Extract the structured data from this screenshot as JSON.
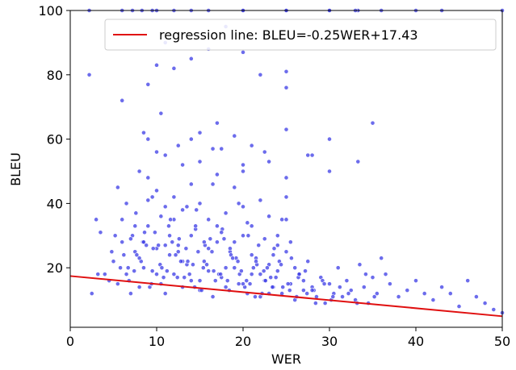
{
  "chart_data": {
    "type": "scatter",
    "xlabel": "WER",
    "ylabel": "BLEU",
    "xlim": [
      0,
      50
    ],
    "ylim": [
      1.5,
      100
    ],
    "xticks": [
      0,
      10,
      20,
      30,
      40,
      50
    ],
    "yticks": [
      20,
      40,
      60,
      80,
      100
    ],
    "grid": false,
    "legend_position": "top-right",
    "point_color": "#3b3be6",
    "series": [
      {
        "name": "",
        "x": [
          2.2,
          3.0,
          3.5,
          4.0,
          4.5,
          5.0,
          5.5,
          6.0,
          6.5,
          7.0,
          7.5,
          8.0,
          8.5,
          9.0,
          9.5,
          10.0,
          10.5,
          11.0,
          11.5,
          12.0,
          12.5,
          13.0,
          13.5,
          14.0,
          14.5,
          15.0,
          15.5,
          16.0,
          16.5,
          17.0,
          17.5,
          18.0,
          18.5,
          19.0,
          19.5,
          20.0,
          20.5,
          21.0,
          21.5,
          22.0,
          22.5,
          23.0,
          23.5,
          24.0,
          24.5,
          25.0,
          25.5,
          26.0,
          26.5,
          27.0,
          27.5,
          28.0,
          28.5,
          29.0,
          29.5,
          30.0,
          30.5,
          31.0,
          31.5,
          32.0,
          32.5,
          33.0,
          33.5,
          34.0,
          34.5,
          35.0,
          35.5,
          36.0,
          36.5,
          37.0,
          38.0,
          39.0,
          40.0,
          41.0,
          42.0,
          43.0,
          44.0,
          45.0,
          46.0,
          47.0,
          48.0,
          49.0,
          50.0,
          3.2,
          4.8,
          5.8,
          6.8,
          7.2,
          8.2,
          9.2,
          10.2,
          11.2,
          12.2,
          13.2,
          14.2,
          15.2,
          16.2,
          17.2,
          18.2,
          19.2,
          20.2,
          21.2,
          22.2,
          23.2,
          24.2,
          25.2,
          26.2,
          27.2,
          28.2,
          29.2,
          30.2,
          31.2,
          32.2,
          33.2,
          34.2,
          35.2,
          2.5,
          5.2,
          6.2,
          7.4,
          8.4,
          9.4,
          10.4,
          11.4,
          12.4,
          13.4,
          14.4,
          15.4,
          16.4,
          17.4,
          18.4,
          19.4,
          20.4,
          21.4,
          22.4,
          23.4,
          24.4,
          25.4,
          26.4,
          27.4,
          28.4,
          29.4,
          30.4,
          6.0,
          7.0,
          8.0,
          9.0,
          10.0,
          11.0,
          12.0,
          13.0,
          14.0,
          15.0,
          16.0,
          17.0,
          18.0,
          19.0,
          20.0,
          21.0,
          22.0,
          23.0,
          24.0,
          25.0,
          26.0,
          27.0,
          28.0,
          7.6,
          8.6,
          9.6,
          10.6,
          11.6,
          12.6,
          13.6,
          14.6,
          15.6,
          16.6,
          17.6,
          18.6,
          19.6,
          20.6,
          21.6,
          22.6,
          23.6,
          24.6,
          25.6,
          5.5,
          6.5,
          7.5,
          8.5,
          9.5,
          10.5,
          11.5,
          12.5,
          13.5,
          14.5,
          15.5,
          16.5,
          17.5,
          18.5,
          19.5,
          20.5,
          21.5,
          22.5,
          23.5,
          24.5,
          25.5,
          26.5,
          8.0,
          9.0,
          10.0,
          11.0,
          12.0,
          13.0,
          14.0,
          15.0,
          16.0,
          17.0,
          18.0,
          19.0,
          20.0,
          21.0,
          22.0,
          23.0,
          24.0,
          25.0,
          6.7,
          7.7,
          8.8,
          9.8,
          10.8,
          11.8,
          12.8,
          13.8,
          14.8,
          15.8,
          16.8,
          17.8,
          18.8,
          19.8,
          20.8,
          21.8,
          22.8,
          23.8,
          10.0,
          12.5,
          15.0,
          17.5,
          20.0,
          22.5,
          25.0,
          27.5,
          30.0,
          9.0,
          11.0,
          13.0,
          15.0,
          17.0,
          19.0,
          21.0,
          23.0,
          25.0,
          8.5,
          10.5,
          14.0,
          16.5,
          20.0,
          25.0,
          30.0,
          33.3,
          35.0,
          10.0,
          11.0,
          12.0,
          14.0,
          16.0,
          20.0,
          22.0,
          25.0,
          28.0,
          2.2,
          7.2,
          8.3,
          9.5,
          10.0,
          20.0,
          25.0,
          40.0,
          6.0,
          12.0,
          14.0,
          16.0,
          20.0,
          25.0,
          30.0,
          33.3,
          6.0,
          9.0,
          18.0,
          30.0,
          33.0,
          36.0,
          43.0,
          50.0
        ],
        "y": [
          80,
          35,
          31,
          18,
          16,
          22,
          15,
          28,
          18,
          12,
          25,
          14,
          20,
          33,
          19,
          26,
          15,
          12,
          24,
          18,
          27,
          14,
          21,
          16,
          32,
          13,
          22,
          19,
          11,
          28,
          17,
          14,
          25,
          20,
          15,
          30,
          12,
          18,
          23,
          11,
          16,
          21,
          14,
          19,
          12,
          25,
          15,
          10,
          18,
          13,
          22,
          14,
          11,
          17,
          9,
          15,
          12,
          20,
          11,
          16,
          13,
          10,
          21,
          14,
          9,
          17,
          12,
          23,
          18,
          15,
          11,
          13,
          16,
          12,
          10,
          14,
          12,
          8,
          16,
          11,
          9,
          7,
          6,
          18,
          25,
          20,
          16,
          30,
          22,
          14,
          27,
          19,
          24,
          17,
          21,
          13,
          29,
          18,
          16,
          23,
          14,
          20,
          12,
          17,
          22,
          15,
          11,
          19,
          13,
          16,
          10,
          14,
          12,
          9,
          18,
          11,
          12,
          30,
          24,
          19,
          28,
          15,
          21,
          33,
          17,
          26,
          14,
          20,
          25,
          18,
          13,
          22,
          16,
          11,
          19,
          14,
          21,
          13,
          17,
          12,
          9,
          15,
          11,
          35,
          29,
          23,
          41,
          18,
          27,
          35,
          22,
          30,
          16,
          26,
          33,
          20,
          28,
          15,
          24,
          18,
          12,
          27,
          35,
          20,
          16,
          13,
          37,
          31,
          26,
          20,
          35,
          29,
          22,
          38,
          27,
          19,
          32,
          24,
          18,
          30,
          21,
          16,
          26,
          14,
          23,
          45,
          40,
          33,
          28,
          42,
          36,
          30,
          25,
          39,
          33,
          28,
          46,
          31,
          26,
          40,
          34,
          22,
          29,
          24,
          35,
          28,
          18,
          50,
          48,
          44,
          39,
          42,
          38,
          46,
          40,
          35,
          49,
          37,
          45,
          39,
          33,
          41,
          36,
          30,
          42,
          20,
          24,
          27,
          31,
          17,
          28,
          22,
          18,
          25,
          21,
          16,
          29,
          23,
          19,
          15,
          27,
          20,
          17,
          56,
          58,
          53,
          57,
          52,
          56,
          63,
          55,
          50,
          60,
          55,
          52,
          62,
          65,
          61,
          58,
          53,
          48,
          62,
          68,
          60,
          57,
          50,
          76,
          60,
          53,
          65,
          83,
          90,
          82,
          85,
          88,
          87,
          80,
          81,
          55,
          100,
          100,
          100,
          100,
          100,
          100,
          100,
          100,
          100,
          100,
          100,
          100,
          100,
          100,
          100,
          100,
          72,
          77,
          95,
          100,
          100,
          100,
          100,
          100
        ]
      }
    ],
    "regression": {
      "label": "regression line: BLEU=-0.25WER+17.43",
      "slope": -0.25,
      "intercept": 17.43,
      "color": "#e01010"
    }
  }
}
